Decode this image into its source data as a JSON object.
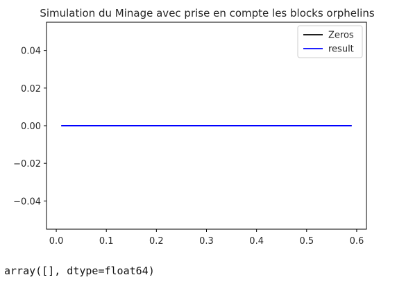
{
  "chart_data": {
    "type": "line",
    "title": "Simulation du Minage avec prise en compte les blocks orphelins",
    "xlabel": "",
    "ylabel": "",
    "xlim": [
      -0.0195,
      0.6195
    ],
    "ylim": [
      -0.055,
      0.055
    ],
    "xticks": [
      0.0,
      0.1,
      0.2,
      0.3,
      0.4,
      0.5,
      0.6
    ],
    "xtick_labels": [
      "0.0",
      "0.1",
      "0.2",
      "0.3",
      "0.4",
      "0.5",
      "0.6"
    ],
    "yticks": [
      0.04,
      0.02,
      0.0,
      -0.02,
      -0.04
    ],
    "ytick_labels": [
      "0.04",
      "0.02",
      "0.00",
      "−0.02",
      "−0.04"
    ],
    "grid": false,
    "legend_position": "top-right",
    "series": [
      {
        "name": "Zeros",
        "color": "#000000",
        "x": [
          0.01,
          0.59
        ],
        "y": [
          0,
          0
        ]
      },
      {
        "name": "result",
        "color": "#0000ff",
        "x": [
          0.01,
          0.59
        ],
        "y": [
          0,
          0
        ]
      }
    ]
  },
  "output": {
    "text": "array([], dtype=float64)"
  }
}
